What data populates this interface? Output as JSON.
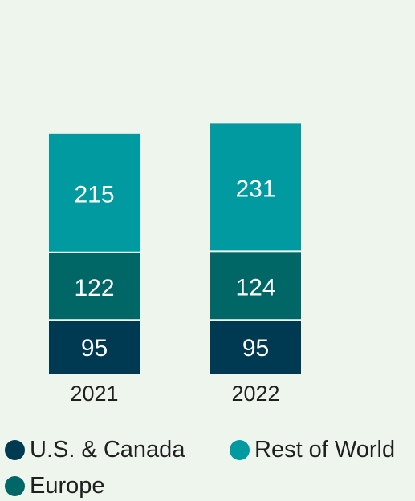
{
  "chart_data": {
    "type": "bar",
    "stacked": true,
    "categories": [
      "2021",
      "2022"
    ],
    "series": [
      {
        "name": "U.S. & Canada",
        "color": "#003a52",
        "values": [
          95,
          95
        ]
      },
      {
        "name": "Europe",
        "color": "#006766",
        "values": [
          122,
          124
        ]
      },
      {
        "name": "Rest of World",
        "color": "#009aa0",
        "values": [
          215,
          231
        ]
      }
    ],
    "legend": {
      "placement": "bottom"
    },
    "grid": false
  },
  "colors": {
    "background": "#eef5ec",
    "bar_label": "#ffffff",
    "axis_label": "#1f1f1f"
  }
}
